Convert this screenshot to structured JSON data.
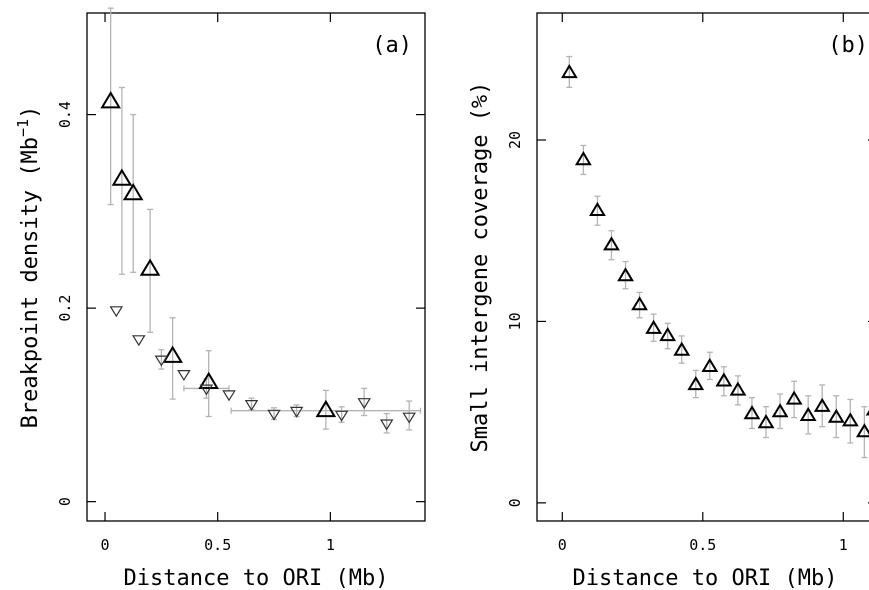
{
  "chart_data": [
    {
      "panel_label": "(a)",
      "type": "scatter",
      "xlabel": "Distance to ORI (Mb)",
      "ylabel": "Breakpoint density (Mb",
      "ylabel_sup": "−1",
      "ylabel_close": ")",
      "xlim": [
        -0.08,
        1.42
      ],
      "ylim": [
        -0.02,
        0.505
      ],
      "xticks": [
        0,
        0.5,
        1
      ],
      "xtick_labels": [
        "0",
        "0.5",
        "1"
      ],
      "yticks": [
        0,
        0.2,
        0.4
      ],
      "ytick_labels": [
        "0",
        "0.2",
        "0.4"
      ],
      "series": [
        {
          "marker": "triangle-up-large",
          "points": [
            {
              "x": 0.025,
              "y": 0.413,
              "ylow": 0.307,
              "yhigh": 0.51
            },
            {
              "x": 0.075,
              "y": 0.333,
              "ylow": 0.235,
              "yhigh": 0.428
            },
            {
              "x": 0.125,
              "y": 0.318,
              "ylow": 0.237,
              "yhigh": 0.4
            },
            {
              "x": 0.2,
              "y": 0.24,
              "ylow": 0.175,
              "yhigh": 0.302
            },
            {
              "x": 0.3,
              "y": 0.15,
              "ylow": 0.106,
              "yhigh": 0.19
            },
            {
              "x": 0.46,
              "y": 0.123,
              "ylow": 0.088,
              "yhigh": 0.156
            },
            {
              "x": 0.98,
              "y": 0.094,
              "ylow": 0.075,
              "yhigh": 0.115,
              "xlow": 0.56,
              "xhigh": 1.4
            }
          ]
        },
        {
          "marker": "triangle-down-small",
          "points": [
            {
              "x": 0.05,
              "y": 0.198
            },
            {
              "x": 0.15,
              "y": 0.168
            },
            {
              "x": 0.25,
              "y": 0.147,
              "ylow": 0.137,
              "yhigh": 0.157
            },
            {
              "x": 0.35,
              "y": 0.132
            },
            {
              "x": 0.45,
              "y": 0.117,
              "ylow": 0.107,
              "yhigh": 0.127,
              "xlow": 0.35,
              "xhigh": 0.55
            },
            {
              "x": 0.55,
              "y": 0.111
            },
            {
              "x": 0.65,
              "y": 0.101,
              "ylow": 0.095,
              "yhigh": 0.107
            },
            {
              "x": 0.75,
              "y": 0.091,
              "ylow": 0.085,
              "yhigh": 0.097
            },
            {
              "x": 0.85,
              "y": 0.094,
              "ylow": 0.088,
              "yhigh": 0.1
            },
            {
              "x": 1.05,
              "y": 0.09,
              "ylow": 0.082,
              "yhigh": 0.098
            },
            {
              "x": 1.15,
              "y": 0.103,
              "ylow": 0.089,
              "yhigh": 0.117
            },
            {
              "x": 1.25,
              "y": 0.081,
              "ylow": 0.071,
              "yhigh": 0.091
            },
            {
              "x": 1.35,
              "y": 0.088,
              "ylow": 0.074,
              "yhigh": 0.104
            }
          ]
        }
      ]
    },
    {
      "panel_label": "(b)",
      "type": "scatter",
      "xlabel": "Distance to ORI (Mb)",
      "ylabel": "Small intergene coverage (%)",
      "xlim": [
        -0.09,
        1.12
      ],
      "ylim": [
        -1,
        27
      ],
      "xticks": [
        0,
        0.5,
        1
      ],
      "xtick_labels": [
        "0",
        "0.5",
        "1"
      ],
      "yticks": [
        0,
        10,
        20
      ],
      "ytick_labels": [
        "0",
        "10",
        "20"
      ],
      "series": [
        {
          "marker": "triangle-up",
          "points": [
            {
              "x": 0.025,
              "y": 23.7,
              "ylow": 22.9,
              "yhigh": 24.6
            },
            {
              "x": 0.075,
              "y": 18.9,
              "ylow": 18.1,
              "yhigh": 19.7
            },
            {
              "x": 0.125,
              "y": 16.1,
              "ylow": 15.3,
              "yhigh": 16.9
            },
            {
              "x": 0.175,
              "y": 14.2,
              "ylow": 13.4,
              "yhigh": 15.0
            },
            {
              "x": 0.225,
              "y": 12.5,
              "ylow": 11.8,
              "yhigh": 13.3
            },
            {
              "x": 0.275,
              "y": 10.9,
              "ylow": 10.2,
              "yhigh": 11.6
            },
            {
              "x": 0.325,
              "y": 9.6,
              "ylow": 8.9,
              "yhigh": 10.4
            },
            {
              "x": 0.375,
              "y": 9.2,
              "ylow": 8.5,
              "yhigh": 9.9
            },
            {
              "x": 0.425,
              "y": 8.4,
              "ylow": 7.7,
              "yhigh": 9.2
            },
            {
              "x": 0.475,
              "y": 6.5,
              "ylow": 5.8,
              "yhigh": 7.3
            },
            {
              "x": 0.525,
              "y": 7.5,
              "ylow": 6.8,
              "yhigh": 8.3
            },
            {
              "x": 0.575,
              "y": 6.7,
              "ylow": 5.9,
              "yhigh": 7.5
            },
            {
              "x": 0.625,
              "y": 6.2,
              "ylow": 5.4,
              "yhigh": 7.0
            },
            {
              "x": 0.675,
              "y": 4.9,
              "ylow": 4.1,
              "yhigh": 5.8
            },
            {
              "x": 0.725,
              "y": 4.4,
              "ylow": 3.6,
              "yhigh": 5.3
            },
            {
              "x": 0.775,
              "y": 5.0,
              "ylow": 4.1,
              "yhigh": 6.0
            },
            {
              "x": 0.825,
              "y": 5.7,
              "ylow": 4.7,
              "yhigh": 6.7
            },
            {
              "x": 0.875,
              "y": 4.8,
              "ylow": 3.8,
              "yhigh": 5.9
            },
            {
              "x": 0.925,
              "y": 5.3,
              "ylow": 4.2,
              "yhigh": 6.5
            },
            {
              "x": 0.975,
              "y": 4.7,
              "ylow": 3.6,
              "yhigh": 5.9
            },
            {
              "x": 1.025,
              "y": 4.5,
              "ylow": 3.3,
              "yhigh": 5.7
            },
            {
              "x": 1.075,
              "y": 3.9,
              "ylow": 2.5,
              "yhigh": 5.3
            },
            {
              "x": 1.11,
              "y": 5.1,
              "ylow": 3.0,
              "yhigh": 7.2
            }
          ]
        }
      ]
    }
  ]
}
